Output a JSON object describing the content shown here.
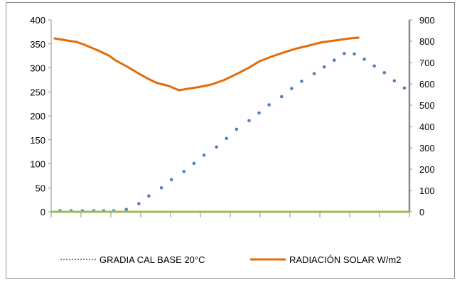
{
  "chart_data": {
    "type": "line",
    "title": "",
    "xlabel": "",
    "x": [
      1,
      2,
      3,
      4,
      5,
      6,
      7,
      8,
      9,
      10,
      11,
      12,
      13,
      14,
      15,
      16,
      17,
      18,
      19,
      20,
      21,
      22,
      23,
      24,
      25,
      26,
      27,
      28,
      29,
      30,
      31,
      32,
      33,
      34,
      35,
      36,
      37,
      38,
      39,
      40,
      41,
      42,
      43,
      44,
      45,
      46,
      47,
      48,
      49,
      50,
      51,
      52,
      53,
      54,
      55,
      56,
      57,
      58,
      59,
      60,
      61,
      62,
      63,
      64,
      65,
      66,
      67,
      68,
      69,
      70,
      71,
      72,
      73,
      74,
      75,
      76,
      77,
      78,
      79,
      80,
      81,
      82,
      83,
      84,
      85,
      86,
      87,
      88,
      89,
      90,
      91,
      92,
      93,
      94,
      95,
      96,
      97,
      98,
      99,
      100,
      101,
      102,
      103,
      104,
      105,
      106,
      107,
      108,
      109,
      110,
      111,
      112,
      113,
      114,
      115,
      116,
      117,
      118,
      119,
      120,
      121,
      122,
      123,
      124,
      125,
      126,
      127,
      128,
      129,
      130,
      131,
      132,
      133,
      134,
      135,
      136,
      137,
      138,
      139,
      140,
      141,
      142,
      143,
      144
    ],
    "y_left": {
      "label": "",
      "range": [
        0,
        400
      ],
      "ticks": [
        0,
        50,
        100,
        150,
        200,
        250,
        300,
        350,
        400
      ]
    },
    "y_right": {
      "label": "",
      "range": [
        0,
        900
      ],
      "ticks": [
        0,
        100,
        200,
        300,
        400,
        500,
        600,
        700,
        800,
        900
      ]
    },
    "legend_position": "bottom",
    "series": [
      {
        "name": "GRADIA CAL BASE 20°C",
        "axis": "left",
        "style": "dotted",
        "color": "#4F81BD",
        "points": [
          {
            "x": 4.5,
            "y": 2
          },
          {
            "x": 9,
            "y": 2
          },
          {
            "x": 13.5,
            "y": 2
          },
          {
            "x": 18,
            "y": 2
          },
          {
            "x": 22,
            "y": 2
          },
          {
            "x": 26,
            "y": 2
          },
          {
            "x": 31,
            "y": 5
          },
          {
            "x": 36,
            "y": 17
          },
          {
            "x": 40,
            "y": 33
          },
          {
            "x": 45,
            "y": 50
          },
          {
            "x": 49,
            "y": 67
          },
          {
            "x": 54,
            "y": 84
          },
          {
            "x": 58,
            "y": 101
          },
          {
            "x": 62,
            "y": 118
          },
          {
            "x": 67,
            "y": 135
          },
          {
            "x": 71,
            "y": 153
          },
          {
            "x": 75,
            "y": 172
          },
          {
            "x": 80,
            "y": 190
          },
          {
            "x": 84,
            "y": 206
          },
          {
            "x": 88,
            "y": 223
          },
          {
            "x": 93,
            "y": 240
          },
          {
            "x": 97,
            "y": 257
          },
          {
            "x": 101,
            "y": 272
          },
          {
            "x": 106,
            "y": 288
          },
          {
            "x": 110,
            "y": 302
          },
          {
            "x": 114,
            "y": 316
          },
          {
            "x": 118,
            "y": 330
          },
          {
            "x": 122,
            "y": 329
          },
          {
            "x": 126,
            "y": 318
          },
          {
            "x": 130,
            "y": 304
          },
          {
            "x": 134,
            "y": 290
          },
          {
            "x": 138,
            "y": 273
          },
          {
            "x": 142,
            "y": 258
          }
        ]
      },
      {
        "name": "RADIACIÓN SOLAR W/m2",
        "axis": "right",
        "style": "solid",
        "color": "#E36C09",
        "points": [
          {
            "x": 2,
            "y": 814
          },
          {
            "x": 5,
            "y": 808
          },
          {
            "x": 8,
            "y": 802
          },
          {
            "x": 11,
            "y": 797
          },
          {
            "x": 14,
            "y": 785
          },
          {
            "x": 17,
            "y": 770
          },
          {
            "x": 20,
            "y": 755
          },
          {
            "x": 24,
            "y": 733
          },
          {
            "x": 27,
            "y": 708
          },
          {
            "x": 31,
            "y": 683
          },
          {
            "x": 35,
            "y": 655
          },
          {
            "x": 39,
            "y": 628
          },
          {
            "x": 43,
            "y": 605
          },
          {
            "x": 48,
            "y": 590
          },
          {
            "x": 52,
            "y": 570
          },
          {
            "x": 56,
            "y": 578
          },
          {
            "x": 60,
            "y": 585
          },
          {
            "x": 65,
            "y": 597
          },
          {
            "x": 70,
            "y": 618
          },
          {
            "x": 75,
            "y": 646
          },
          {
            "x": 80,
            "y": 676
          },
          {
            "x": 84,
            "y": 705
          },
          {
            "x": 89,
            "y": 728
          },
          {
            "x": 94,
            "y": 748
          },
          {
            "x": 99,
            "y": 766
          },
          {
            "x": 104,
            "y": 780
          },
          {
            "x": 109,
            "y": 795
          },
          {
            "x": 114,
            "y": 803
          },
          {
            "x": 120,
            "y": 813
          },
          {
            "x": 124,
            "y": 817
          }
        ]
      },
      {
        "name": "",
        "axis": "left",
        "style": "solid",
        "color": "#9BBB59",
        "points": [
          {
            "x": 1,
            "y": 0
          },
          {
            "x": 144,
            "y": 0
          }
        ]
      }
    ]
  }
}
